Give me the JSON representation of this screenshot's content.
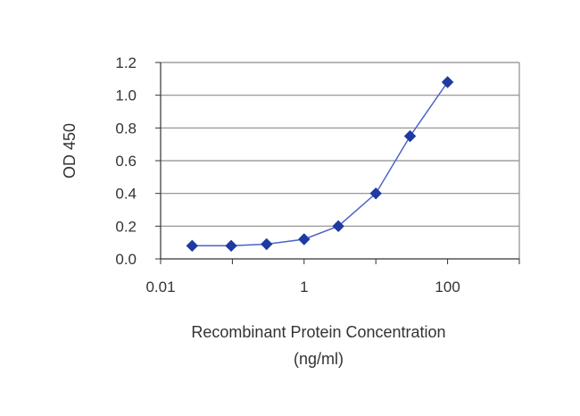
{
  "chart_data": {
    "type": "line",
    "title": "",
    "xlabel": "Recombinant Protein Concentration",
    "xlabel_unit": "(ng/ml)",
    "ylabel": "OD 450",
    "x_scale": "log",
    "xlim": [
      0.01,
      1000
    ],
    "ylim": [
      0,
      1.2
    ],
    "x_ticks": [
      "0.01",
      "1",
      "100"
    ],
    "y_ticks": [
      "0.0",
      "0.2",
      "0.4",
      "0.6",
      "0.8",
      "1.0",
      "1.2"
    ],
    "grid": "horizontal",
    "legend": "none",
    "series": [
      {
        "x": [
          0.0275,
          0.0963,
          0.3,
          1.0,
          3.0,
          10.0,
          30.0,
          100.0
        ],
        "y": [
          0.08,
          0.08,
          0.09,
          0.12,
          0.2,
          0.4,
          0.75,
          1.08
        ],
        "marker": "diamond",
        "color": "#1f3aa0"
      }
    ],
    "colors": {
      "line": "#4a63c8",
      "marker": "#1f3aa0",
      "grid": "#8c8c8c",
      "frame": "#8c8c8c",
      "axis": "#333333"
    }
  }
}
